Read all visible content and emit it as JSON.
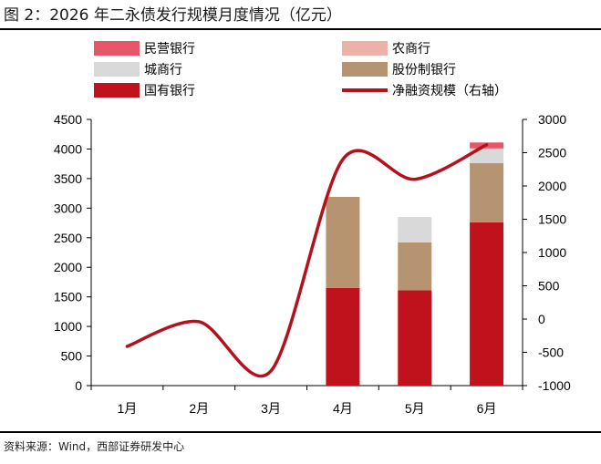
{
  "figure_title": "图 2：2026 年二永债发行规模月度情况（亿元）",
  "source_note": "资料来源：Wind，西部证券研发中心",
  "chart_data": {
    "type": "bar",
    "stacked": true,
    "categories": [
      "1月",
      "2月",
      "3月",
      "4月",
      "5月",
      "6月"
    ],
    "series": [
      {
        "name": "国有银行",
        "values": [
          0,
          0,
          0,
          1650,
          1610,
          2760
        ],
        "color": "#c0121c"
      },
      {
        "name": "股份制银行",
        "values": [
          0,
          0,
          0,
          1540,
          810,
          1000
        ],
        "color": "#b69472"
      },
      {
        "name": "城商行",
        "values": [
          0,
          0,
          0,
          0,
          430,
          250
        ],
        "color": "#d9d9d9"
      },
      {
        "name": "农商行",
        "values": [
          0,
          0,
          0,
          0,
          0,
          0
        ],
        "color": "#ebb2aa"
      },
      {
        "name": "民营银行",
        "values": [
          0,
          0,
          0,
          0,
          0,
          100
        ],
        "color": "#e8566a"
      }
    ],
    "line_series": {
      "name": "净融资规模（右轴）",
      "axis": "right",
      "values": [
        -410,
        -40,
        -780,
        2400,
        2100,
        2620
      ],
      "color": "#b3121c"
    },
    "left_axis": {
      "range": [
        0,
        4500
      ],
      "ticks": [
        "0",
        "500",
        "1000",
        "1500",
        "2000",
        "2500",
        "3000",
        "3500",
        "4000",
        "4500"
      ]
    },
    "right_axis": {
      "range": [
        -1000,
        3000
      ],
      "ticks": [
        "-1000",
        "-500",
        "0",
        "500",
        "1000",
        "1500",
        "2000",
        "2500",
        "3000"
      ]
    },
    "legend_order": [
      "民营银行",
      "农商行",
      "城商行",
      "股份制银行",
      "国有银行",
      "净融资规模（右轴）"
    ],
    "legend_position": "top",
    "grid": false
  }
}
